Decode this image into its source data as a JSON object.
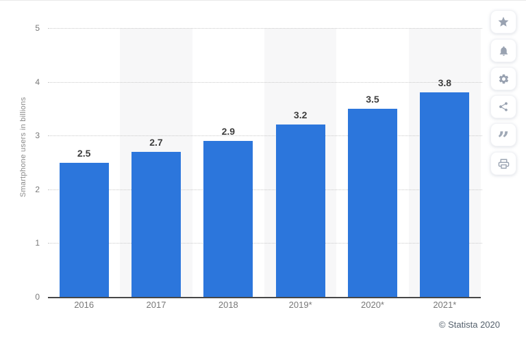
{
  "chart_data": {
    "type": "bar",
    "title": "",
    "categories": [
      "2016",
      "2017",
      "2018",
      "2019*",
      "2020*",
      "2021*"
    ],
    "values": [
      2.5,
      2.7,
      2.9,
      3.2,
      3.5,
      3.8
    ],
    "value_labels": [
      "2.5",
      "2.7",
      "2.9",
      "3.2",
      "3.5",
      "3.8"
    ],
    "xlabel": "",
    "ylabel": "Smartphone users in billions",
    "ylim": [
      0,
      5
    ],
    "yticks": [
      0,
      1,
      2,
      3,
      4,
      5
    ],
    "grid": "horizontal-dotted",
    "legend": null,
    "colors": {
      "bar": "#2c76dc",
      "stripe": "#f7f7f8",
      "gridline": "#c9c9c9",
      "axis": "#474747"
    }
  },
  "footer": {
    "copyright": "© Statista 2020"
  },
  "sidebar": {
    "icons": [
      "star-icon",
      "bell-icon",
      "gear-icon",
      "share-icon",
      "quote-icon",
      "print-icon"
    ],
    "icon_color": "#99a2b1"
  }
}
